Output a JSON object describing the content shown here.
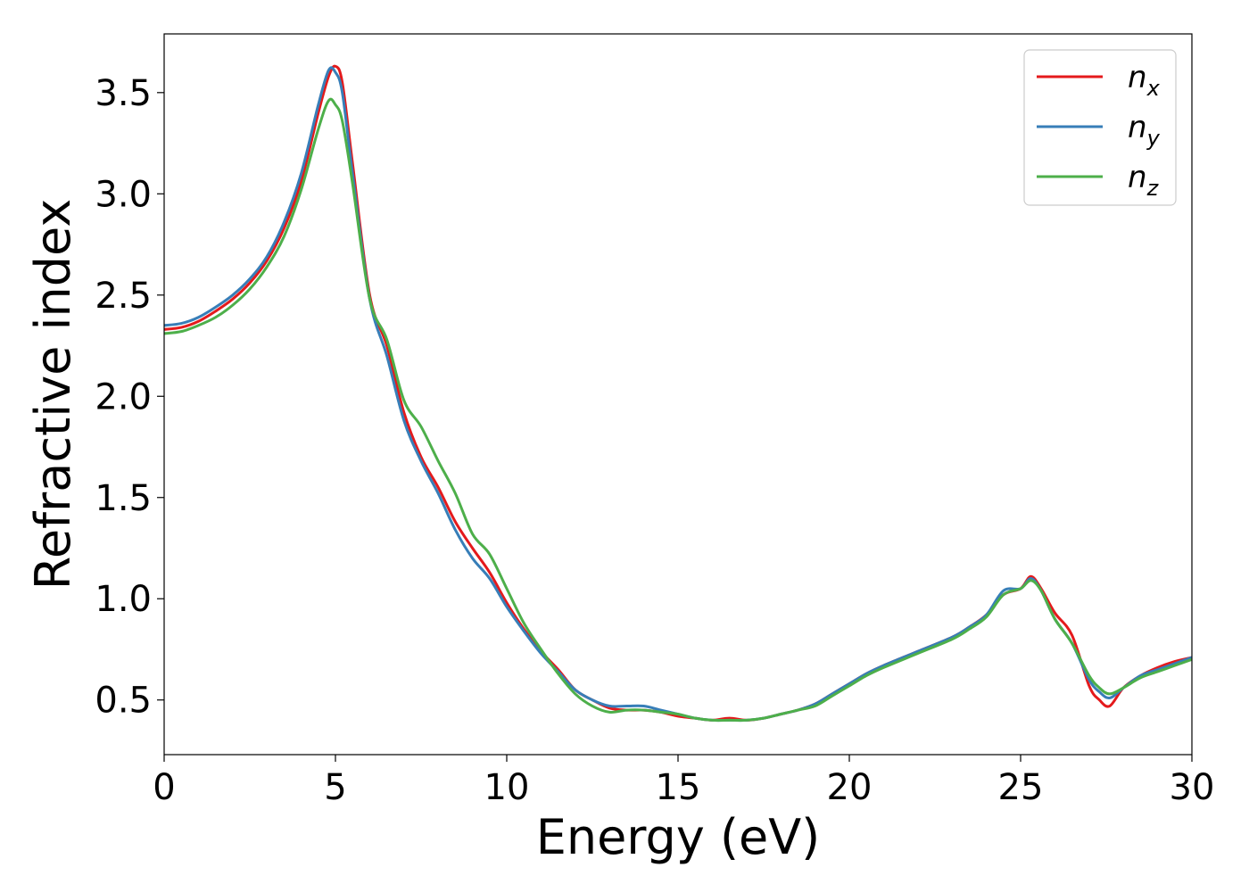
{
  "chart_data": {
    "type": "line",
    "xlabel": "Energy (eV)",
    "ylabel": "Refractive index",
    "xlim": [
      0,
      30
    ],
    "ylim": [
      0.23,
      3.79
    ],
    "xticks": [
      0,
      5,
      10,
      15,
      20,
      25,
      30
    ],
    "yticks": [
      0.5,
      1.0,
      1.5,
      2.0,
      2.5,
      3.0,
      3.5
    ],
    "xtick_labels": [
      "0",
      "5",
      "10",
      "15",
      "20",
      "25",
      "30"
    ],
    "ytick_labels": [
      "0.5",
      "1.0",
      "1.5",
      "2.0",
      "2.5",
      "3.0",
      "3.5"
    ],
    "grid": false,
    "legend": "top-right",
    "series": [
      {
        "name": "n_x",
        "label_main": "n",
        "label_sub": "x",
        "color": "#e41a1c",
        "x": [
          0,
          0.5,
          1,
          1.5,
          2,
          2.5,
          3,
          3.5,
          4,
          4.5,
          4.8,
          5,
          5.2,
          5.5,
          6,
          6.5,
          7,
          7.5,
          8,
          8.5,
          9,
          9.5,
          10,
          10.5,
          11,
          11.5,
          12,
          12.5,
          13,
          13.5,
          14,
          14.5,
          15,
          15.5,
          16,
          16.5,
          17,
          17.5,
          18,
          18.5,
          19,
          19.5,
          20,
          20.5,
          21,
          22,
          23,
          23.5,
          24,
          24.5,
          25,
          25.3,
          25.6,
          26,
          26.5,
          27,
          27.3,
          27.6,
          28,
          28.5,
          29,
          29.5,
          30
        ],
        "y": [
          2.33,
          2.34,
          2.37,
          2.42,
          2.48,
          2.56,
          2.67,
          2.83,
          3.06,
          3.4,
          3.58,
          3.63,
          3.55,
          3.15,
          2.5,
          2.25,
          1.92,
          1.7,
          1.55,
          1.38,
          1.25,
          1.13,
          0.98,
          0.85,
          0.74,
          0.65,
          0.55,
          0.5,
          0.46,
          0.45,
          0.45,
          0.44,
          0.42,
          0.41,
          0.4,
          0.41,
          0.4,
          0.41,
          0.43,
          0.45,
          0.48,
          0.53,
          0.58,
          0.63,
          0.67,
          0.74,
          0.81,
          0.86,
          0.92,
          1.02,
          1.05,
          1.11,
          1.05,
          0.93,
          0.82,
          0.57,
          0.5,
          0.47,
          0.56,
          0.62,
          0.66,
          0.69,
          0.71
        ]
      },
      {
        "name": "n_y",
        "label_main": "n",
        "label_sub": "y",
        "color": "#377eb8",
        "x": [
          0,
          0.5,
          1,
          1.5,
          2,
          2.5,
          3,
          3.5,
          4,
          4.5,
          4.8,
          5,
          5.2,
          5.5,
          6,
          6.5,
          7,
          7.5,
          8,
          8.5,
          9,
          9.5,
          10,
          10.5,
          11,
          11.5,
          12,
          12.5,
          13,
          13.5,
          14,
          14.5,
          15,
          15.5,
          16,
          16.5,
          17,
          17.5,
          18,
          18.5,
          19,
          19.5,
          20,
          20.5,
          21,
          22,
          23,
          23.5,
          24,
          24.5,
          25,
          25.3,
          25.6,
          26,
          26.5,
          27,
          27.3,
          27.6,
          28,
          28.5,
          29,
          29.5,
          30
        ],
        "y": [
          2.35,
          2.36,
          2.39,
          2.44,
          2.5,
          2.58,
          2.69,
          2.86,
          3.1,
          3.44,
          3.61,
          3.6,
          3.5,
          3.1,
          2.48,
          2.2,
          1.88,
          1.68,
          1.52,
          1.34,
          1.2,
          1.1,
          0.96,
          0.84,
          0.73,
          0.64,
          0.55,
          0.5,
          0.47,
          0.47,
          0.47,
          0.45,
          0.43,
          0.41,
          0.4,
          0.4,
          0.4,
          0.41,
          0.43,
          0.45,
          0.48,
          0.53,
          0.58,
          0.63,
          0.67,
          0.74,
          0.81,
          0.86,
          0.92,
          1.04,
          1.05,
          1.1,
          1.04,
          0.9,
          0.78,
          0.6,
          0.54,
          0.51,
          0.56,
          0.62,
          0.65,
          0.68,
          0.71
        ]
      },
      {
        "name": "n_z",
        "label_main": "n",
        "label_sub": "z",
        "color": "#4daf4a",
        "x": [
          0,
          0.5,
          1,
          1.5,
          2,
          2.5,
          3,
          3.5,
          4,
          4.5,
          4.8,
          5,
          5.2,
          5.5,
          6,
          6.5,
          7,
          7.5,
          8,
          8.5,
          9,
          9.5,
          10,
          10.5,
          11,
          11.5,
          12,
          12.5,
          13,
          13.5,
          14,
          14.5,
          15,
          15.5,
          16,
          16.5,
          17,
          17.5,
          18,
          18.5,
          19,
          19.5,
          20,
          20.5,
          21,
          22,
          23,
          23.5,
          24,
          24.5,
          25,
          25.3,
          25.6,
          26,
          26.5,
          27,
          27.3,
          27.6,
          28,
          28.5,
          29,
          29.5,
          30
        ],
        "y": [
          2.31,
          2.32,
          2.35,
          2.39,
          2.45,
          2.53,
          2.64,
          2.79,
          3.02,
          3.32,
          3.46,
          3.44,
          3.36,
          3.05,
          2.48,
          2.28,
          1.98,
          1.85,
          1.68,
          1.52,
          1.32,
          1.22,
          1.05,
          0.88,
          0.75,
          0.63,
          0.53,
          0.47,
          0.44,
          0.45,
          0.45,
          0.44,
          0.43,
          0.41,
          0.4,
          0.4,
          0.4,
          0.41,
          0.43,
          0.45,
          0.47,
          0.52,
          0.57,
          0.62,
          0.66,
          0.73,
          0.8,
          0.85,
          0.91,
          1.02,
          1.05,
          1.09,
          1.04,
          0.9,
          0.78,
          0.62,
          0.56,
          0.53,
          0.56,
          0.61,
          0.64,
          0.67,
          0.7
        ]
      }
    ]
  }
}
